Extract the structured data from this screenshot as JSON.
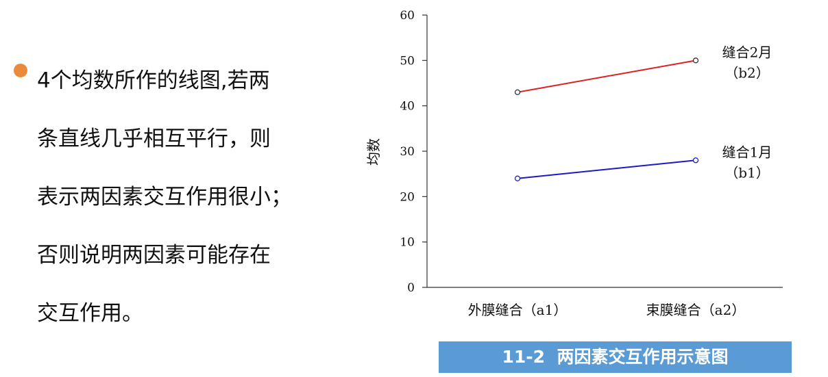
{
  "bullet": {
    "lines": [
      "4个均数所作的线图,若两",
      "条直线几乎相互平行，则",
      "表示两因素交互作用很小；",
      "否则说明两因素可能存在",
      "交互作用。"
    ]
  },
  "colors": {
    "bullet": "#ec8a3c",
    "caption_bg": "#5b9bd5",
    "series_b2": "#e02020",
    "series_b1": "#1a1acc"
  },
  "chart_data": {
    "type": "line",
    "title": "11-2  两因素交互作用示意图",
    "xlabel": "",
    "ylabel": "均数",
    "categories": [
      "外膜缝合（a1）",
      "束膜缝合（a2）"
    ],
    "ylim": [
      0,
      60
    ],
    "yticks": [
      0,
      10,
      20,
      30,
      40,
      50,
      60
    ],
    "grid": false,
    "series": [
      {
        "name": "缝合2月",
        "sub": "（b2）",
        "values": [
          43,
          50
        ],
        "color": "#e02020"
      },
      {
        "name": "缝合1月",
        "sub": "（b1）",
        "values": [
          24,
          28
        ],
        "color": "#1a1acc"
      }
    ]
  }
}
